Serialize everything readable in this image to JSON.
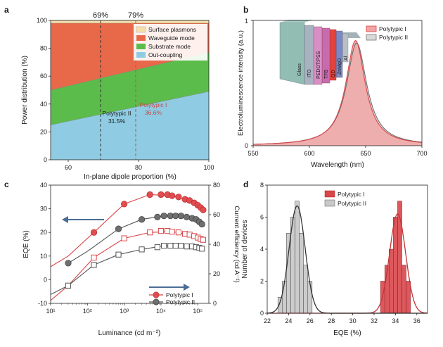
{
  "colors": {
    "surface": "#f6dfaa",
    "waveguide": "#e8694a",
    "substrate": "#5cbc4b",
    "outcoupling": "#8fcbe2",
    "poly1": "#d9464a",
    "poly1_fill": "#f0a5a3",
    "poly2": "#6f6f6f",
    "poly2_fill": "#c9c9c9",
    "arrow": "#4a6d95"
  },
  "chart_data": [
    {
      "panel": "a",
      "type": "area",
      "ylabel": "Power distribution (%)",
      "xlabel": "In-plane dipole proportion (%)",
      "xlim": [
        55,
        100
      ],
      "ylim": [
        0,
        100
      ],
      "xticks": [
        60,
        80,
        100
      ],
      "yticks": [
        0,
        20,
        40,
        60,
        80,
        100
      ],
      "vlines": [
        {
          "x": 69,
          "label": "69%",
          "color": "#333333"
        },
        {
          "x": 79,
          "label": "79%",
          "color": "#c84848"
        }
      ],
      "series": [
        {
          "name": "Surface plasmons",
          "x": [
            55,
            100
          ],
          "values": [
            2,
            2
          ]
        },
        {
          "name": "Waveguide mode",
          "x": [
            55,
            100
          ],
          "values": [
            48,
            21
          ]
        },
        {
          "name": "Substrate mode",
          "x": [
            55,
            100
          ],
          "values": [
            25,
            28
          ]
        },
        {
          "name": "Out-coupling",
          "x": [
            55,
            100
          ],
          "values": [
            25,
            49
          ]
        }
      ],
      "annotations": [
        {
          "text": "Polytypic II",
          "value": "31.5%",
          "x": 69
        },
        {
          "text": "Polytypic I",
          "value": "36.6%",
          "x": 79
        }
      ],
      "legend": "top-right"
    },
    {
      "panel": "b",
      "type": "area",
      "ylabel": "Electroluminescence intensity (a.u.)",
      "xlabel": "Wavelength (nm)",
      "xlim": [
        550,
        700
      ],
      "ylim": [
        0,
        1
      ],
      "xticks": [
        550,
        600,
        650,
        700
      ],
      "yticks": [
        0,
        1
      ],
      "series": [
        {
          "name": "Polytypic I",
          "peak": 641,
          "fwhm": 21,
          "max": 0.84
        },
        {
          "name": "Polytypic II",
          "peak": 642,
          "fwhm": 22,
          "max": 0.82
        }
      ],
      "device_layers": [
        "Glass",
        "ITO",
        "PEDOT:PSS",
        "TFB",
        "QD",
        "ZnMgO",
        "Al"
      ],
      "legend": "top-right"
    },
    {
      "panel": "c",
      "type": "scatter",
      "xlabel": "Luminance (cd m⁻²)",
      "ylabel": "EQE (%)",
      "y2label": "Current efficiency (cd A⁻¹)",
      "xscale": "log",
      "xlim": [
        10,
        200000
      ],
      "ylim": [
        -10,
        40
      ],
      "y2lim": [
        0,
        80
      ],
      "xticks": [
        "10¹",
        "10²",
        "10³",
        "10⁴",
        "10⁵"
      ],
      "yticks": [
        -10,
        0,
        10,
        20,
        30,
        40
      ],
      "y2ticks": [
        0,
        20,
        40,
        60,
        80
      ],
      "eqe_series": [
        {
          "name": "Polytypic I",
          "x": [
            150,
            1000,
            5000,
            10000,
            15000,
            20000,
            30000,
            45000,
            60000,
            80000,
            100000,
            120000,
            140000
          ],
          "values": [
            20,
            32,
            36,
            36,
            36,
            35.5,
            35,
            34,
            33.5,
            32.5,
            31.5,
            30.5,
            29.5
          ]
        },
        {
          "name": "Polytypic II",
          "x": [
            30,
            700,
            3000,
            8000,
            12000,
            18000,
            25000,
            35000,
            50000,
            70000,
            90000,
            110000,
            130000
          ],
          "values": [
            7,
            21.5,
            25.5,
            26.5,
            27,
            27,
            27,
            27,
            26.5,
            26,
            25.5,
            24.5,
            23.5
          ]
        }
      ],
      "ce_series": [
        {
          "name": "Polytypic I",
          "x": [
            150,
            1000,
            5000,
            10000,
            15000,
            20000,
            30000,
            45000,
            60000,
            80000,
            100000,
            120000,
            140000
          ],
          "values": [
            31,
            44,
            48,
            49,
            49,
            48.5,
            48,
            47,
            46.5,
            45.5,
            44.5,
            43.5,
            43
          ]
        },
        {
          "name": "Polytypic II",
          "x": [
            30,
            150,
            700,
            3000,
            8000,
            12000,
            18000,
            25000,
            35000,
            50000,
            70000,
            90000,
            110000,
            130000
          ],
          "values": [
            12,
            26,
            33,
            36.5,
            38,
            39,
            39,
            39,
            39,
            38.5,
            38.5,
            38,
            37.5,
            37
          ]
        }
      ],
      "legend": "bottom-right"
    },
    {
      "panel": "d",
      "type": "bar",
      "xlabel": "EQE (%)",
      "ylabel": "Number of devices",
      "xlim": [
        22,
        37
      ],
      "ylim": [
        0,
        8
      ],
      "xticks": [
        22,
        24,
        26,
        28,
        30,
        32,
        34,
        36
      ],
      "yticks": [
        0,
        2,
        4,
        6,
        8
      ],
      "series": [
        {
          "name": "Polytypic I",
          "bins": [
            [
              32.6,
              33.0
            ],
            [
              33.0,
              33.4
            ],
            [
              33.4,
              33.8
            ],
            [
              33.8,
              34.2
            ],
            [
              34.2,
              34.6
            ],
            [
              34.6,
              35.0
            ],
            [
              35.0,
              35.4
            ]
          ],
          "values": [
            2,
            3,
            4,
            6,
            7,
            3,
            2
          ],
          "fit_mean": 34.2,
          "fit_sd": 0.75,
          "fit_peak": 6.2
        },
        {
          "name": "Polytypic II",
          "bins": [
            [
              23.0,
              23.4
            ],
            [
              23.4,
              23.8
            ],
            [
              23.8,
              24.2
            ],
            [
              24.2,
              24.6
            ],
            [
              24.6,
              25.0
            ],
            [
              25.0,
              25.4
            ],
            [
              25.4,
              25.8
            ],
            [
              25.8,
              26.2
            ]
          ],
          "values": [
            1,
            2,
            5,
            6,
            7,
            5,
            3,
            2
          ],
          "fit_mean": 24.8,
          "fit_sd": 0.75,
          "fit_peak": 6.7
        }
      ],
      "legend": "top-right"
    }
  ],
  "panels": {
    "a": "a",
    "b": "b",
    "c": "c",
    "d": "d"
  },
  "labels": {
    "a_ylabel": "Power distribution (%)",
    "a_xlabel": "In-plane dipole proportion (%)",
    "a_v1": "69%",
    "a_v2": "79%",
    "a_ann1_name": "Polytypic II",
    "a_ann1_val": "31.5%",
    "a_ann2_name": "Polytypic I",
    "a_ann2_val": "36.6%",
    "a_leg1": "Surface plasmons",
    "a_leg2": "Waveguide mode",
    "a_leg3": "Substrate mode",
    "a_leg4": "Out-coupling",
    "b_ylabel": "Electroluminescence intensity (a.u.)",
    "b_xlabel": "Wavelength (nm)",
    "b_leg1": "Polytypic I",
    "b_leg2": "Polytypic II",
    "b_y0": "0",
    "b_y1": "1",
    "c_ylabel": "EQE (%)",
    "c_y2label": "Current efficiency (cd A⁻¹)",
    "c_xlabel": "Luminance (cd m⁻²)",
    "c_leg1": "Polytypic I",
    "c_leg2": "Polytypic II",
    "d_ylabel": "Number of devices",
    "d_xlabel": "EQE (%)",
    "d_leg1": "Polytypic I",
    "d_leg2": "Polytypic II"
  }
}
